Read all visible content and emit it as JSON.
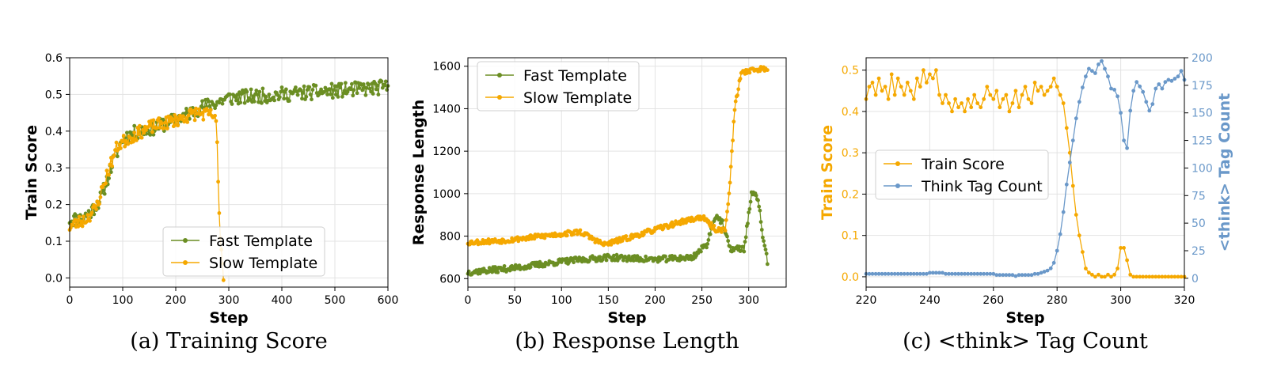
{
  "colors": {
    "fast": "#6B8E23",
    "slow": "#F5A800",
    "think": "#6A98C9",
    "grid": "#E3E3E3"
  },
  "chart_data": [
    {
      "id": "a",
      "type": "line",
      "caption": "(a) Training Score",
      "xlabel": "Step",
      "ylabel": "Train Score",
      "xlim": [
        0,
        600
      ],
      "ylim": [
        -0.025,
        0.6
      ],
      "xticks": [
        0,
        100,
        200,
        300,
        400,
        500,
        600
      ],
      "yticks": [
        0.0,
        0.1,
        0.2,
        0.3,
        0.4,
        0.5,
        0.6
      ],
      "ytick_labels": [
        "0.0",
        "0.1",
        "0.2",
        "0.3",
        "0.4",
        "0.5",
        "0.6"
      ],
      "legend": {
        "position": "lower-center",
        "entries": [
          "Fast Template",
          "Slow Template"
        ]
      },
      "series": [
        {
          "name": "Fast Template",
          "color_key": "fast",
          "shape": "noisy",
          "anchors": [
            [
              0,
              0.16
            ],
            [
              20,
              0.16
            ],
            [
              40,
              0.18
            ],
            [
              60,
              0.22
            ],
            [
              80,
              0.31
            ],
            [
              100,
              0.38
            ],
            [
              130,
              0.4
            ],
            [
              160,
              0.41
            ],
            [
              200,
              0.43
            ],
            [
              240,
              0.46
            ],
            [
              260,
              0.47
            ],
            [
              300,
              0.49
            ],
            [
              400,
              0.5
            ],
            [
              500,
              0.51
            ],
            [
              600,
              0.52
            ]
          ],
          "step": 2,
          "noise": 0.02,
          "seed": 11
        },
        {
          "name": "Slow Template",
          "color_key": "slow",
          "shape": "noisy",
          "anchors": [
            [
              0,
              0.14
            ],
            [
              30,
              0.16
            ],
            [
              50,
              0.19
            ],
            [
              70,
              0.28
            ],
            [
              90,
              0.36
            ],
            [
              110,
              0.38
            ],
            [
              150,
              0.41
            ],
            [
              200,
              0.43
            ],
            [
              240,
              0.45
            ],
            [
              275,
              0.44
            ],
            [
              278,
              0.36
            ],
            [
              281,
              0.2
            ],
            [
              285,
              0.1
            ],
            [
              290,
              0.0
            ]
          ],
          "step": 2,
          "noise": 0.018,
          "seed": 23
        }
      ]
    },
    {
      "id": "b",
      "type": "line",
      "caption": "(b) Response Length",
      "xlabel": "Step",
      "ylabel": "Response Length",
      "xlim": [
        0,
        340
      ],
      "ylim": [
        560,
        1640
      ],
      "xticks": [
        0,
        50,
        100,
        150,
        200,
        250,
        300
      ],
      "yticks": [
        600,
        800,
        1000,
        1200,
        1400,
        1600
      ],
      "ytick_labels": [
        "600",
        "800",
        "1000",
        "1200",
        "1400",
        "1600"
      ],
      "legend": {
        "position": "upper-left",
        "entries": [
          "Fast Template",
          "Slow Template"
        ]
      },
      "series": [
        {
          "name": "Fast Template",
          "color_key": "fast",
          "shape": "noisy",
          "anchors": [
            [
              0,
              630
            ],
            [
              50,
              650
            ],
            [
              100,
              680
            ],
            [
              150,
              700
            ],
            [
              200,
              690
            ],
            [
              240,
              700
            ],
            [
              255,
              760
            ],
            [
              265,
              900
            ],
            [
              272,
              860
            ],
            [
              280,
              740
            ],
            [
              295,
              740
            ],
            [
              303,
              1000
            ],
            [
              310,
              980
            ],
            [
              315,
              800
            ],
            [
              320,
              680
            ]
          ],
          "step": 1,
          "noise": 14,
          "seed": 37
        },
        {
          "name": "Slow Template",
          "color_key": "slow",
          "shape": "noisy",
          "anchors": [
            [
              0,
              770
            ],
            [
              40,
              780
            ],
            [
              80,
              800
            ],
            [
              120,
              820
            ],
            [
              145,
              760
            ],
            [
              170,
              790
            ],
            [
              200,
              830
            ],
            [
              230,
              870
            ],
            [
              250,
              890
            ],
            [
              265,
              830
            ],
            [
              275,
              830
            ],
            [
              280,
              1050
            ],
            [
              285,
              1400
            ],
            [
              292,
              1570
            ],
            [
              300,
              1580
            ],
            [
              320,
              1590
            ]
          ],
          "step": 1,
          "noise": 12,
          "seed": 53
        }
      ]
    },
    {
      "id": "c",
      "type": "line",
      "caption": "(c) <think> Tag Count",
      "xlabel": "Step",
      "ylabel": "Train Score",
      "ylabel_right": "<think> Tag Count",
      "xlim": [
        220,
        320
      ],
      "ylim": [
        -0.025,
        0.53
      ],
      "ylim_right": [
        -8,
        200
      ],
      "xticks": [
        220,
        240,
        260,
        280,
        300,
        320
      ],
      "yticks": [
        0.0,
        0.1,
        0.2,
        0.3,
        0.4,
        0.5
      ],
      "ytick_labels": [
        "0.0",
        "0.1",
        "0.2",
        "0.3",
        "0.4",
        "0.5"
      ],
      "yticks_right": [
        0,
        25,
        50,
        75,
        100,
        125,
        150,
        175,
        200
      ],
      "legend": {
        "position": "center-left",
        "entries": [
          "Train Score",
          "Think Tag Count"
        ]
      },
      "series": [
        {
          "name": "Train Score",
          "color_key": "slow",
          "axis": "left",
          "x": [
            220,
            221,
            222,
            223,
            224,
            225,
            226,
            227,
            228,
            229,
            230,
            231,
            232,
            233,
            234,
            235,
            236,
            237,
            238,
            239,
            240,
            241,
            242,
            243,
            244,
            245,
            246,
            247,
            248,
            249,
            250,
            251,
            252,
            253,
            254,
            255,
            256,
            257,
            258,
            259,
            260,
            261,
            262,
            263,
            264,
            265,
            266,
            267,
            268,
            269,
            270,
            271,
            272,
            273,
            274,
            275,
            276,
            277,
            278,
            279,
            280,
            281,
            282,
            283,
            284,
            285,
            286,
            287,
            288,
            289,
            290,
            291,
            292,
            293,
            294,
            295,
            296,
            297,
            298,
            299,
            300,
            301,
            302,
            303,
            304,
            305,
            306,
            307,
            308,
            309,
            310,
            311,
            312,
            313,
            314,
            315,
            316,
            317,
            318,
            319,
            320
          ],
          "y": [
            0.43,
            0.46,
            0.47,
            0.44,
            0.48,
            0.45,
            0.46,
            0.43,
            0.49,
            0.44,
            0.48,
            0.46,
            0.44,
            0.47,
            0.45,
            0.43,
            0.48,
            0.46,
            0.5,
            0.47,
            0.49,
            0.48,
            0.5,
            0.44,
            0.42,
            0.44,
            0.42,
            0.4,
            0.43,
            0.41,
            0.42,
            0.4,
            0.43,
            0.41,
            0.44,
            0.42,
            0.41,
            0.43,
            0.46,
            0.44,
            0.43,
            0.45,
            0.41,
            0.43,
            0.44,
            0.4,
            0.42,
            0.45,
            0.41,
            0.44,
            0.46,
            0.43,
            0.42,
            0.47,
            0.45,
            0.46,
            0.44,
            0.45,
            0.46,
            0.48,
            0.46,
            0.44,
            0.42,
            0.36,
            0.3,
            0.22,
            0.15,
            0.1,
            0.06,
            0.02,
            0.01,
            0.005,
            0.0,
            0.005,
            0.0,
            0.0,
            0.005,
            0.0,
            0.005,
            0.02,
            0.07,
            0.07,
            0.04,
            0.005,
            0.0,
            0.0,
            0.0,
            0.0,
            0.0,
            0.0,
            0.0,
            0.0,
            0.0,
            0.0,
            0.0,
            0.0,
            0.0,
            0.0,
            0.0,
            0.0,
            0.0
          ]
        },
        {
          "name": "Think Tag Count",
          "color_key": "think",
          "axis": "right",
          "x": [
            220,
            221,
            222,
            223,
            224,
            225,
            226,
            227,
            228,
            229,
            230,
            231,
            232,
            233,
            234,
            235,
            236,
            237,
            238,
            239,
            240,
            241,
            242,
            243,
            244,
            245,
            246,
            247,
            248,
            249,
            250,
            251,
            252,
            253,
            254,
            255,
            256,
            257,
            258,
            259,
            260,
            261,
            262,
            263,
            264,
            265,
            266,
            267,
            268,
            269,
            270,
            271,
            272,
            273,
            274,
            275,
            276,
            277,
            278,
            279,
            280,
            281,
            282,
            283,
            284,
            285,
            286,
            287,
            288,
            289,
            290,
            291,
            292,
            293,
            294,
            295,
            296,
            297,
            298,
            299,
            300,
            301,
            302,
            303,
            304,
            305,
            306,
            307,
            308,
            309,
            310,
            311,
            312,
            313,
            314,
            315,
            316,
            317,
            318,
            319,
            320
          ],
          "y": [
            4,
            4,
            4,
            4,
            4,
            4,
            4,
            4,
            4,
            4,
            4,
            4,
            4,
            4,
            4,
            4,
            4,
            4,
            4,
            4,
            5,
            5,
            5,
            5,
            5,
            4,
            4,
            4,
            4,
            4,
            4,
            4,
            4,
            4,
            4,
            4,
            4,
            4,
            4,
            4,
            4,
            3,
            3,
            3,
            3,
            3,
            3,
            2,
            3,
            3,
            3,
            3,
            3,
            4,
            4,
            5,
            6,
            7,
            9,
            14,
            25,
            40,
            60,
            85,
            105,
            125,
            145,
            160,
            173,
            183,
            190,
            188,
            186,
            194,
            197,
            190,
            183,
            172,
            171,
            165,
            150,
            125,
            118,
            152,
            170,
            178,
            174,
            169,
            160,
            152,
            158,
            172,
            176,
            172,
            178,
            180,
            179,
            181,
            183,
            188,
            180
          ]
        }
      ]
    }
  ]
}
